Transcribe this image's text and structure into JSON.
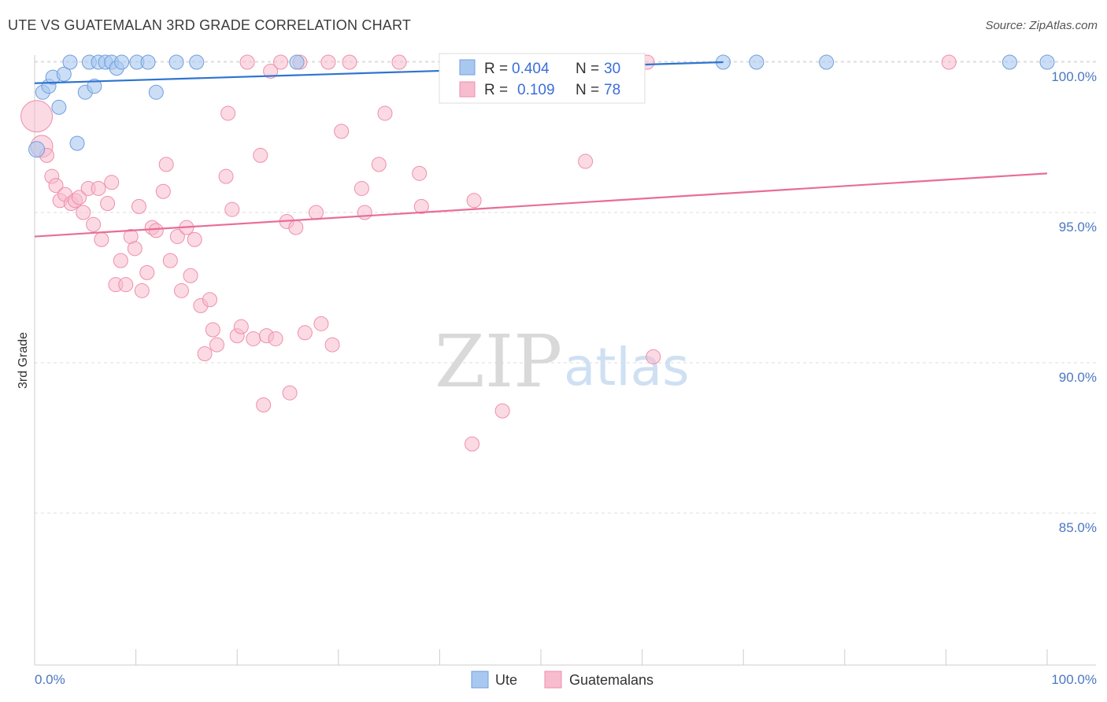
{
  "title": "UTE VS GUATEMALAN 3RD GRADE CORRELATION CHART",
  "source": "Source: ZipAtlas.com",
  "watermark": {
    "zip": "ZIP",
    "atlas": "atlas"
  },
  "colors": {
    "ute_fill": "#a9c8f0",
    "ute_stroke": "#6f9fdc",
    "ute_line": "#2e74d0",
    "guat_fill": "#f7bccd",
    "guat_stroke": "#ee8fac",
    "guat_line": "#e86d98",
    "grid": "#dddddd",
    "axis_text": "#4a78c2"
  },
  "legend": {
    "ute": {
      "r_label": "R = ",
      "r_value": "0.404",
      "n_label": "N = ",
      "n_value": "30"
    },
    "guat": {
      "r_label": "R = ",
      "r_value": "0.109",
      "n_label": "N = ",
      "n_value": "78"
    }
  },
  "bottom_legend": [
    "Ute",
    "Guatemalans"
  ],
  "chart_data": {
    "type": "scatter",
    "title": "UTE VS GUATEMALAN 3RD GRADE CORRELATION CHART",
    "xlabel": "",
    "ylabel": "3rd Grade",
    "xlim": [
      0,
      100
    ],
    "ylim": [
      80.5,
      100.5
    ],
    "x_tick_labels": [
      "0.0%",
      "100.0%"
    ],
    "y_ticks": [
      85.0,
      90.0,
      95.0,
      100.0
    ],
    "y_tick_labels": [
      "85.0%",
      "90.0%",
      "95.0%",
      "100.0%"
    ],
    "grid": true,
    "legend_placement": "top-center",
    "series": [
      {
        "name": "Ute",
        "r": 0.404,
        "n": 30,
        "trend": {
          "x": [
            0,
            68
          ],
          "y": [
            99.3,
            100.0
          ]
        },
        "points": [
          {
            "x": 0.2,
            "y": 97.1
          },
          {
            "x": 0.8,
            "y": 99.0
          },
          {
            "x": 1.4,
            "y": 99.2
          },
          {
            "x": 1.8,
            "y": 99.5
          },
          {
            "x": 2.4,
            "y": 98.5
          },
          {
            "x": 2.9,
            "y": 99.6
          },
          {
            "x": 3.5,
            "y": 100.0
          },
          {
            "x": 4.2,
            "y": 97.3
          },
          {
            "x": 5.0,
            "y": 99.0
          },
          {
            "x": 5.4,
            "y": 100.0
          },
          {
            "x": 5.9,
            "y": 99.2
          },
          {
            "x": 6.3,
            "y": 100.0
          },
          {
            "x": 7.0,
            "y": 100.0
          },
          {
            "x": 7.6,
            "y": 100.0
          },
          {
            "x": 8.1,
            "y": 99.8
          },
          {
            "x": 8.6,
            "y": 100.0
          },
          {
            "x": 10.1,
            "y": 100.0
          },
          {
            "x": 11.2,
            "y": 100.0
          },
          {
            "x": 12.0,
            "y": 99.0
          },
          {
            "x": 14.0,
            "y": 100.0
          },
          {
            "x": 16.0,
            "y": 100.0
          },
          {
            "x": 25.9,
            "y": 100.0
          },
          {
            "x": 42.3,
            "y": 100.0
          },
          {
            "x": 48.7,
            "y": 100.0
          },
          {
            "x": 68.0,
            "y": 100.0
          },
          {
            "x": 71.3,
            "y": 100.0
          },
          {
            "x": 78.2,
            "y": 100.0
          },
          {
            "x": 96.3,
            "y": 100.0
          },
          {
            "x": 100.0,
            "y": 100.0
          },
          {
            "x": 51.0,
            "y": 100.0
          }
        ]
      },
      {
        "name": "Guatemalans",
        "r": 0.109,
        "n": 78,
        "trend": {
          "x": [
            0,
            100
          ],
          "y": [
            94.2,
            96.3
          ]
        },
        "points": [
          {
            "x": 0.2,
            "y": 98.2
          },
          {
            "x": 0.7,
            "y": 97.2
          },
          {
            "x": 1.2,
            "y": 96.9
          },
          {
            "x": 1.7,
            "y": 96.2
          },
          {
            "x": 2.1,
            "y": 95.9
          },
          {
            "x": 2.5,
            "y": 95.4
          },
          {
            "x": 3.0,
            "y": 95.6
          },
          {
            "x": 3.6,
            "y": 95.3
          },
          {
            "x": 4.0,
            "y": 95.4
          },
          {
            "x": 4.4,
            "y": 95.5
          },
          {
            "x": 4.8,
            "y": 95.0
          },
          {
            "x": 5.3,
            "y": 95.8
          },
          {
            "x": 5.8,
            "y": 94.6
          },
          {
            "x": 6.3,
            "y": 95.8
          },
          {
            "x": 6.6,
            "y": 94.1
          },
          {
            "x": 7.2,
            "y": 95.3
          },
          {
            "x": 7.6,
            "y": 96.0
          },
          {
            "x": 8.0,
            "y": 92.6
          },
          {
            "x": 8.5,
            "y": 93.4
          },
          {
            "x": 9.0,
            "y": 92.6
          },
          {
            "x": 9.5,
            "y": 94.2
          },
          {
            "x": 9.9,
            "y": 93.8
          },
          {
            "x": 10.3,
            "y": 95.2
          },
          {
            "x": 10.6,
            "y": 92.4
          },
          {
            "x": 11.1,
            "y": 93.0
          },
          {
            "x": 11.6,
            "y": 94.5
          },
          {
            "x": 12.0,
            "y": 94.4
          },
          {
            "x": 12.7,
            "y": 95.7
          },
          {
            "x": 13.0,
            "y": 96.6
          },
          {
            "x": 13.4,
            "y": 93.4
          },
          {
            "x": 14.1,
            "y": 94.2
          },
          {
            "x": 14.5,
            "y": 92.4
          },
          {
            "x": 15.0,
            "y": 94.5
          },
          {
            "x": 15.4,
            "y": 92.9
          },
          {
            "x": 15.8,
            "y": 94.1
          },
          {
            "x": 16.4,
            "y": 91.9
          },
          {
            "x": 16.8,
            "y": 90.3
          },
          {
            "x": 17.3,
            "y": 92.1
          },
          {
            "x": 17.6,
            "y": 91.1
          },
          {
            "x": 18.0,
            "y": 90.6
          },
          {
            "x": 18.9,
            "y": 96.2
          },
          {
            "x": 19.1,
            "y": 98.3
          },
          {
            "x": 19.5,
            "y": 95.1
          },
          {
            "x": 20.0,
            "y": 90.9
          },
          {
            "x": 20.4,
            "y": 91.2
          },
          {
            "x": 21.0,
            "y": 100.0
          },
          {
            "x": 21.6,
            "y": 90.8
          },
          {
            "x": 22.3,
            "y": 96.9
          },
          {
            "x": 22.6,
            "y": 88.6
          },
          {
            "x": 22.9,
            "y": 90.9
          },
          {
            "x": 23.3,
            "y": 99.7
          },
          {
            "x": 23.8,
            "y": 90.8
          },
          {
            "x": 24.3,
            "y": 100.0
          },
          {
            "x": 24.9,
            "y": 94.7
          },
          {
            "x": 25.2,
            "y": 89.0
          },
          {
            "x": 25.8,
            "y": 94.5
          },
          {
            "x": 26.2,
            "y": 100.0
          },
          {
            "x": 26.7,
            "y": 91.0
          },
          {
            "x": 27.8,
            "y": 95.0
          },
          {
            "x": 28.3,
            "y": 91.3
          },
          {
            "x": 29.0,
            "y": 100.0
          },
          {
            "x": 29.4,
            "y": 90.6
          },
          {
            "x": 30.3,
            "y": 97.7
          },
          {
            "x": 31.1,
            "y": 100.0
          },
          {
            "x": 32.6,
            "y": 95.0
          },
          {
            "x": 32.3,
            "y": 95.8
          },
          {
            "x": 34.0,
            "y": 96.6
          },
          {
            "x": 34.6,
            "y": 98.3
          },
          {
            "x": 36.0,
            "y": 100.0
          },
          {
            "x": 38.0,
            "y": 96.3
          },
          {
            "x": 38.2,
            "y": 95.2
          },
          {
            "x": 43.2,
            "y": 87.3
          },
          {
            "x": 43.4,
            "y": 95.4
          },
          {
            "x": 46.2,
            "y": 88.4
          },
          {
            "x": 54.4,
            "y": 96.7
          },
          {
            "x": 61.1,
            "y": 90.2
          },
          {
            "x": 90.3,
            "y": 100.0
          },
          {
            "x": 60.5,
            "y": 100.0
          }
        ]
      }
    ]
  }
}
